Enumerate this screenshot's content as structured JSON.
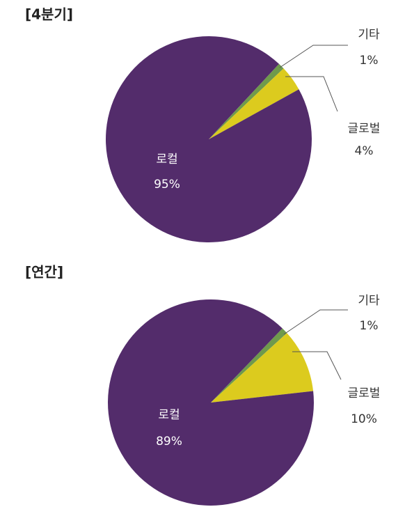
{
  "chart_data": [
    {
      "type": "pie",
      "title": "[4분기]",
      "categories": [
        "로컬",
        "글로벌",
        "기타"
      ],
      "values": [
        95,
        4,
        1
      ],
      "value_labels": [
        "95%",
        "4%",
        "1%"
      ],
      "colors": [
        "#532c6b",
        "#dccb1e",
        "#6f9a4c"
      ]
    },
    {
      "type": "pie",
      "title": "[연간]",
      "categories": [
        "로컬",
        "글로벌",
        "기타"
      ],
      "values": [
        89,
        10,
        1
      ],
      "value_labels": [
        "89%",
        "10%",
        "1%"
      ],
      "colors": [
        "#532c6b",
        "#dccb1e",
        "#6f9a4c"
      ]
    }
  ]
}
